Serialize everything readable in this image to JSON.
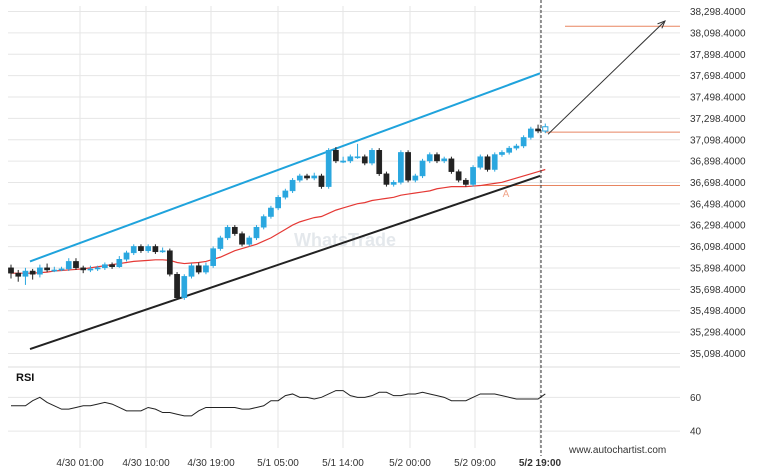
{
  "chart_data": [
    {
      "type": "candlestick",
      "x_ticks": [
        "4/30 01:00",
        "4/30 10:00",
        "4/30 19:00",
        "5/1 05:00",
        "5/1 14:00",
        "5/2 00:00",
        "5/2 09:00",
        "5/2 19:00"
      ],
      "y_ticks": [
        "38,298.4000",
        "38,098.4000",
        "37,898.4000",
        "37,698.4000",
        "37,498.4000",
        "37,298.4000",
        "37,098.4000",
        "36,898.4000",
        "36,698.4000",
        "36,498.4000",
        "36,298.4000",
        "36,098.4000",
        "35,898.4000",
        "35,698.4000",
        "35,498.4000",
        "35,298.4000",
        "35,098.4000"
      ],
      "ylim": [
        35000,
        38350
      ],
      "candles": [
        {
          "o": 35900,
          "c": 35850,
          "h": 35930,
          "l": 35800
        },
        {
          "o": 35850,
          "c": 35820,
          "h": 35880,
          "l": 35770
        },
        {
          "o": 35820,
          "c": 35870,
          "h": 35900,
          "l": 35740
        },
        {
          "o": 35870,
          "c": 35840,
          "h": 35890,
          "l": 35790
        },
        {
          "o": 35840,
          "c": 35900,
          "h": 35930,
          "l": 35810
        },
        {
          "o": 35900,
          "c": 35880,
          "h": 35940,
          "l": 35860
        },
        {
          "o": 35880,
          "c": 35880,
          "h": 35910,
          "l": 35860
        },
        {
          "o": 35880,
          "c": 35890,
          "h": 35910,
          "l": 35870
        },
        {
          "o": 35890,
          "c": 35960,
          "h": 35990,
          "l": 35870
        },
        {
          "o": 35960,
          "c": 35900,
          "h": 35990,
          "l": 35880
        },
        {
          "o": 35900,
          "c": 35880,
          "h": 35920,
          "l": 35850
        },
        {
          "o": 35880,
          "c": 35890,
          "h": 35920,
          "l": 35860
        },
        {
          "o": 35890,
          "c": 35900,
          "h": 35920,
          "l": 35870
        },
        {
          "o": 35900,
          "c": 35930,
          "h": 35950,
          "l": 35880
        },
        {
          "o": 35930,
          "c": 35910,
          "h": 35950,
          "l": 35890
        },
        {
          "o": 35910,
          "c": 35980,
          "h": 36010,
          "l": 35900
        },
        {
          "o": 35980,
          "c": 36040,
          "h": 36060,
          "l": 35960
        },
        {
          "o": 36040,
          "c": 36100,
          "h": 36120,
          "l": 36020
        },
        {
          "o": 36100,
          "c": 36060,
          "h": 36120,
          "l": 36040
        },
        {
          "o": 36060,
          "c": 36100,
          "h": 36120,
          "l": 36040
        },
        {
          "o": 36100,
          "c": 36050,
          "h": 36120,
          "l": 36030
        },
        {
          "o": 36050,
          "c": 36060,
          "h": 36090,
          "l": 36040
        },
        {
          "o": 36060,
          "c": 35840,
          "h": 36080,
          "l": 35820
        },
        {
          "o": 35840,
          "c": 35620,
          "h": 35860,
          "l": 35600
        },
        {
          "o": 35620,
          "c": 35820,
          "h": 35840,
          "l": 35600
        },
        {
          "o": 35820,
          "c": 35920,
          "h": 35940,
          "l": 35800
        },
        {
          "o": 35920,
          "c": 35860,
          "h": 35950,
          "l": 35840
        },
        {
          "o": 35860,
          "c": 35920,
          "h": 35950,
          "l": 35840
        },
        {
          "o": 35920,
          "c": 36080,
          "h": 36100,
          "l": 35900
        },
        {
          "o": 36080,
          "c": 36180,
          "h": 36200,
          "l": 36060
        },
        {
          "o": 36180,
          "c": 36280,
          "h": 36300,
          "l": 36160
        },
        {
          "o": 36280,
          "c": 36220,
          "h": 36300,
          "l": 36200
        },
        {
          "o": 36220,
          "c": 36120,
          "h": 36240,
          "l": 36100
        },
        {
          "o": 36120,
          "c": 36180,
          "h": 36200,
          "l": 36100
        },
        {
          "o": 36180,
          "c": 36280,
          "h": 36300,
          "l": 36160
        },
        {
          "o": 36280,
          "c": 36380,
          "h": 36400,
          "l": 36260
        },
        {
          "o": 36380,
          "c": 36460,
          "h": 36480,
          "l": 36360
        },
        {
          "o": 36460,
          "c": 36560,
          "h": 36580,
          "l": 36440
        },
        {
          "o": 36560,
          "c": 36620,
          "h": 36640,
          "l": 36540
        },
        {
          "o": 36620,
          "c": 36720,
          "h": 36740,
          "l": 36600
        },
        {
          "o": 36720,
          "c": 36760,
          "h": 36780,
          "l": 36700
        },
        {
          "o": 36760,
          "c": 36740,
          "h": 36780,
          "l": 36720
        },
        {
          "o": 36740,
          "c": 36760,
          "h": 36790,
          "l": 36720
        },
        {
          "o": 36760,
          "c": 36660,
          "h": 36780,
          "l": 36640
        },
        {
          "o": 36660,
          "c": 37000,
          "h": 37020,
          "l": 36640
        },
        {
          "o": 37000,
          "c": 36900,
          "h": 37030,
          "l": 36880
        },
        {
          "o": 36900,
          "c": 36900,
          "h": 36940,
          "l": 36880
        },
        {
          "o": 36900,
          "c": 36940,
          "h": 36960,
          "l": 36880
        },
        {
          "o": 36940,
          "c": 36940,
          "h": 37060,
          "l": 36920
        },
        {
          "o": 36940,
          "c": 36880,
          "h": 36960,
          "l": 36860
        },
        {
          "o": 36880,
          "c": 37000,
          "h": 37020,
          "l": 36860
        },
        {
          "o": 37000,
          "c": 36780,
          "h": 37020,
          "l": 36760
        },
        {
          "o": 36780,
          "c": 36680,
          "h": 36800,
          "l": 36660
        },
        {
          "o": 36680,
          "c": 36700,
          "h": 36720,
          "l": 36660
        },
        {
          "o": 36700,
          "c": 36980,
          "h": 37000,
          "l": 36680
        },
        {
          "o": 36980,
          "c": 36720,
          "h": 37000,
          "l": 36700
        },
        {
          "o": 36720,
          "c": 36760,
          "h": 36780,
          "l": 36700
        },
        {
          "o": 36760,
          "c": 36900,
          "h": 36920,
          "l": 36740
        },
        {
          "o": 36900,
          "c": 36960,
          "h": 36980,
          "l": 36880
        },
        {
          "o": 36960,
          "c": 36900,
          "h": 36980,
          "l": 36880
        },
        {
          "o": 36900,
          "c": 36920,
          "h": 36940,
          "l": 36880
        },
        {
          "o": 36920,
          "c": 36800,
          "h": 36940,
          "l": 36780
        },
        {
          "o": 36800,
          "c": 36720,
          "h": 36820,
          "l": 36700
        },
        {
          "o": 36720,
          "c": 36680,
          "h": 36740,
          "l": 36660
        },
        {
          "o": 36680,
          "c": 36840,
          "h": 36860,
          "l": 36660
        },
        {
          "o": 36840,
          "c": 36940,
          "h": 36960,
          "l": 36820
        },
        {
          "o": 36940,
          "c": 36820,
          "h": 36960,
          "l": 36800
        },
        {
          "o": 36820,
          "c": 36960,
          "h": 36980,
          "l": 36800
        },
        {
          "o": 36960,
          "c": 36980,
          "h": 37000,
          "l": 36940
        },
        {
          "o": 36980,
          "c": 37020,
          "h": 37040,
          "l": 36960
        },
        {
          "o": 37020,
          "c": 37040,
          "h": 37060,
          "l": 37000
        },
        {
          "o": 37040,
          "c": 37120,
          "h": 37140,
          "l": 37020
        },
        {
          "o": 37120,
          "c": 37200,
          "h": 37220,
          "l": 37100
        },
        {
          "o": 37200,
          "c": 37180,
          "h": 37240,
          "l": 37160
        },
        {
          "o": 37180,
          "c": 37220,
          "h": 37250,
          "l": 37160
        }
      ],
      "moving_average": [
        35850,
        35850,
        35850,
        35850,
        35855,
        35860,
        35870,
        35875,
        35880,
        35885,
        35890,
        35900,
        35910,
        35920,
        35930,
        35940,
        35950,
        35960,
        35965,
        35970,
        35975,
        35975,
        35970,
        35950,
        35940,
        35945,
        35950,
        35960,
        35980,
        36000,
        36030,
        36060,
        36080,
        36100,
        36120,
        36150,
        36180,
        36220,
        36260,
        36300,
        36330,
        36350,
        36370,
        36380,
        36410,
        36440,
        36460,
        36480,
        36500,
        36510,
        36530,
        36540,
        36550,
        36560,
        36580,
        36590,
        36600,
        36610,
        36620,
        36640,
        36650,
        36660,
        36660,
        36660,
        36665,
        36670,
        36680,
        36690,
        36700,
        36720,
        36740,
        36760,
        36780,
        36800,
        36820
      ],
      "channel_upper": {
        "from": [
          35,
          35960
        ],
        "to": [
          540,
          37720
        ]
      },
      "channel_lower": {
        "from": [
          35,
          35140
        ],
        "to": [
          540,
          36760
        ]
      },
      "resistance_level": 37170,
      "support_level": 36670,
      "target_level": 38160,
      "projection": {
        "from": [
          73,
          37150
        ],
        "to": [
          80,
          38210
        ]
      },
      "marker_label": "A",
      "marker_point": [
        68,
        36600
      ],
      "watermark": "WhatsTrade",
      "colors": {
        "up": "#2aa7df",
        "down": "#222222",
        "channel_upper": "#1fa3dc",
        "channel_lower": "#222222",
        "ma": "#e53935",
        "level": "#e88560",
        "grid": "#e6e6e6",
        "arrow": "#333333"
      }
    },
    {
      "type": "line",
      "title": "RSI",
      "y_ticks": [
        60,
        40
      ],
      "ylim": [
        30,
        75
      ],
      "values": [
        55,
        55,
        55,
        58,
        60,
        57,
        55,
        53,
        53,
        54,
        55,
        55,
        56,
        57,
        56,
        54,
        52,
        52,
        52,
        54,
        53,
        51,
        51,
        50,
        49,
        49,
        52,
        54,
        54,
        54,
        54,
        54,
        53,
        53,
        54,
        55,
        58,
        58,
        61,
        62,
        60,
        60,
        59,
        60,
        62,
        64,
        64,
        61,
        60,
        60,
        61,
        63,
        63,
        61,
        61,
        62,
        62,
        63,
        62,
        61,
        60,
        58,
        58,
        58,
        60,
        62,
        62,
        62,
        61,
        60,
        59,
        59,
        59,
        59,
        62
      ]
    }
  ],
  "credit": "www.autochartist.com"
}
